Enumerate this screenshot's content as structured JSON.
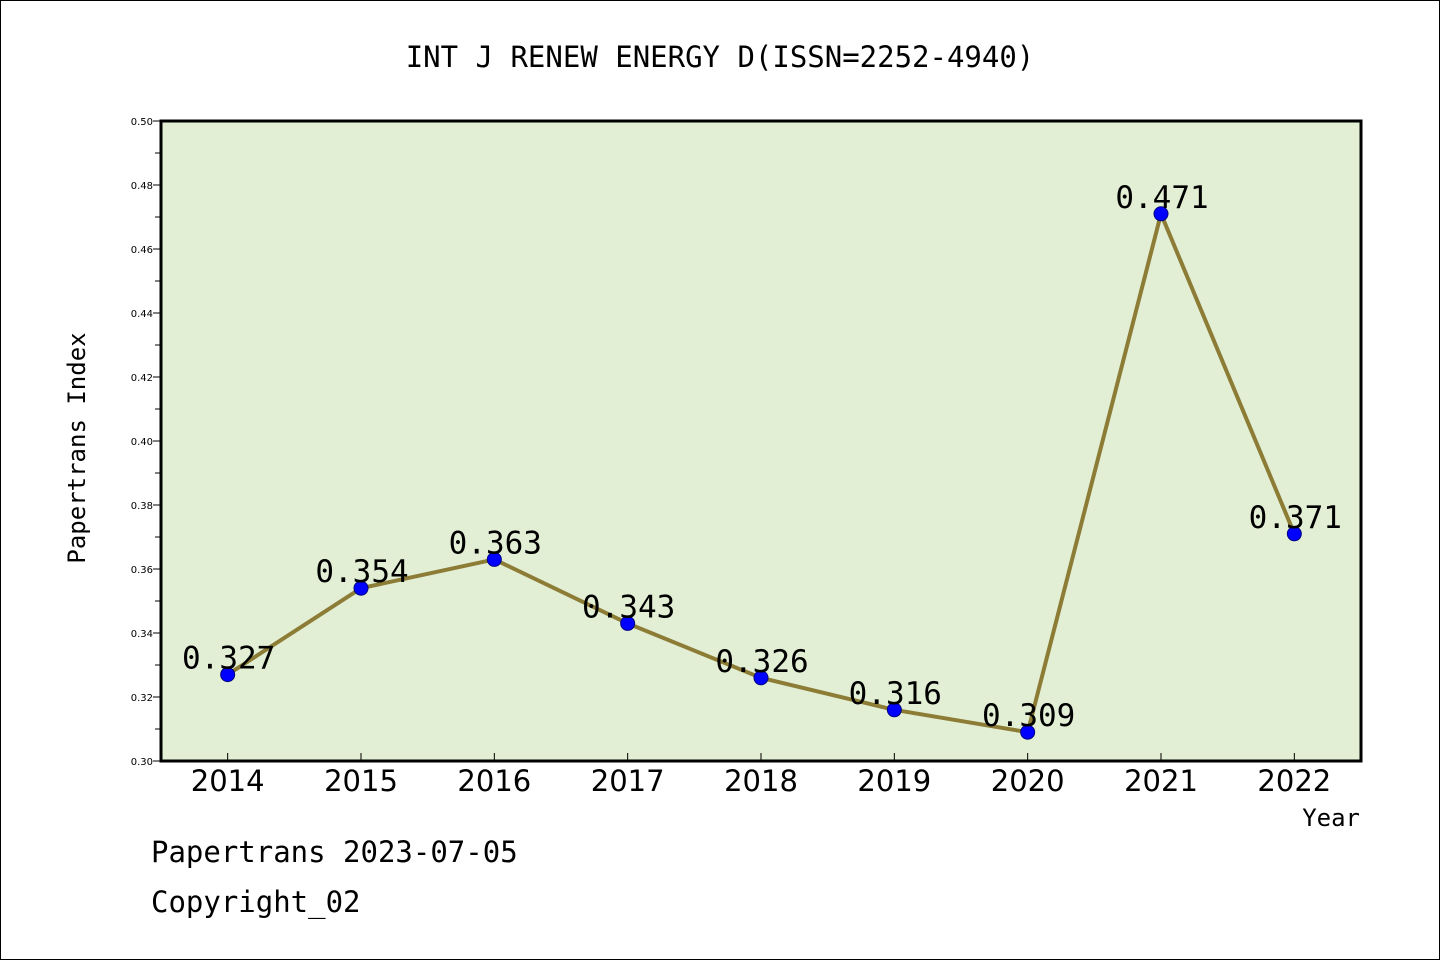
{
  "chart_data": {
    "type": "line",
    "title": "INT J RENEW ENERGY D(ISSN=2252-4940)",
    "xlabel": "Year",
    "ylabel": "Papertrans Index",
    "categories": [
      "2014",
      "2015",
      "2016",
      "2017",
      "2018",
      "2019",
      "2020",
      "2021",
      "2022"
    ],
    "series": [
      {
        "values": [
          0.327,
          0.354,
          0.363,
          0.343,
          0.326,
          0.316,
          0.309,
          0.471,
          0.371
        ]
      }
    ],
    "data_labels": [
      "0.327",
      "0.354",
      "0.363",
      "0.343",
      "0.326",
      "0.316",
      "0.309",
      "0.471",
      "0.371"
    ],
    "ylim": [
      0.3,
      0.5
    ],
    "yticks": [
      "0.30",
      "0.32",
      "0.34",
      "0.36",
      "0.38",
      "0.40",
      "0.42",
      "0.44",
      "0.46",
      "0.48",
      "0.50"
    ],
    "grid": false,
    "legend": "none",
    "colors": {
      "plot_background": "#e2efd5",
      "line": "#8c7c35",
      "marker": "#0000ff",
      "marker_edge": "#000080"
    }
  },
  "footer": {
    "date_line": "Papertrans 2023-07-05",
    "copyright_line": "Copyright_02"
  }
}
